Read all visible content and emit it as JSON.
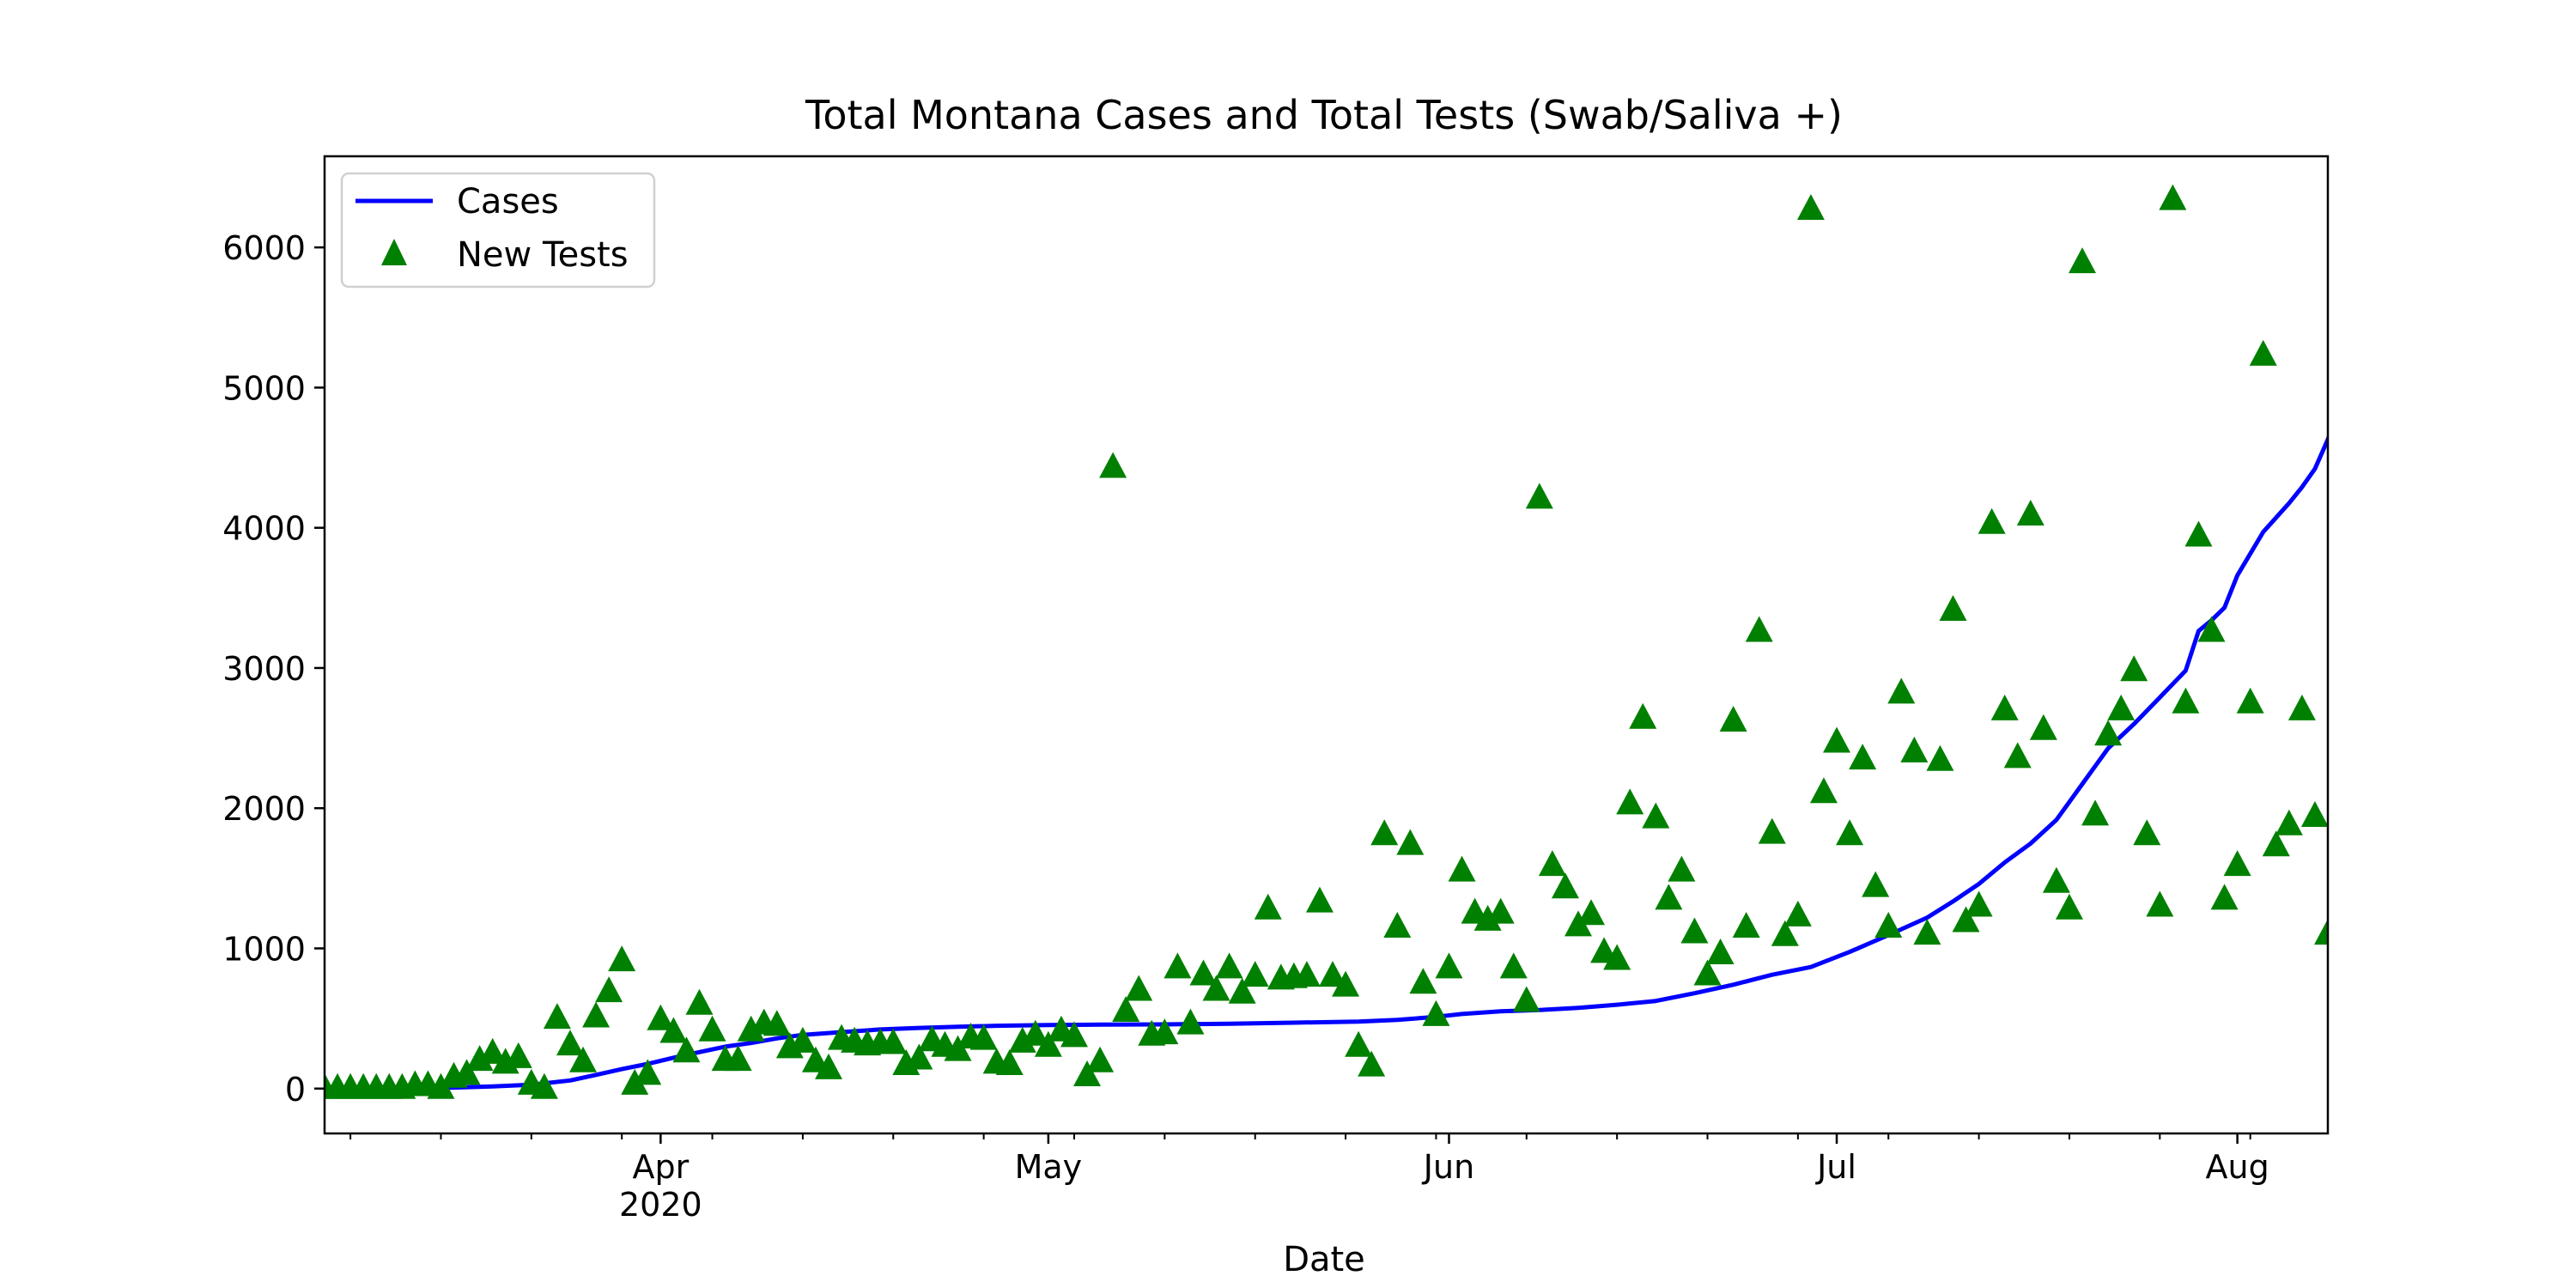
{
  "chart_data": {
    "type": "line",
    "title": "Total Montana Cases and Total Tests (Swab/Saliva +)",
    "xlabel": "Date",
    "ylabel": "",
    "x_range": [
      "2020-03-06",
      "2020-08-07"
    ],
    "ylim": [
      -320,
      6650
    ],
    "yticks": [
      0,
      1000,
      2000,
      3000,
      4000,
      5000,
      6000
    ],
    "xticks": [
      {
        "date": "2020-04-01",
        "label": "Apr",
        "sublabel": "2020"
      },
      {
        "date": "2020-05-01",
        "label": "May",
        "sublabel": ""
      },
      {
        "date": "2020-06-01",
        "label": "Jun",
        "sublabel": ""
      },
      {
        "date": "2020-07-01",
        "label": "Jul",
        "sublabel": ""
      },
      {
        "date": "2020-08-01",
        "label": "Aug",
        "sublabel": ""
      }
    ],
    "grid": false,
    "legend_position": "upper-left",
    "series": [
      {
        "name": "Cases",
        "style": "line",
        "color": "#0000ff",
        "points": [
          [
            "2020-03-06",
            0
          ],
          [
            "2020-03-13",
            1
          ],
          [
            "2020-03-16",
            7
          ],
          [
            "2020-03-19",
            15
          ],
          [
            "2020-03-22",
            27
          ],
          [
            "2020-03-25",
            58
          ],
          [
            "2020-03-27",
            98
          ],
          [
            "2020-03-29",
            139
          ],
          [
            "2020-03-31",
            176
          ],
          [
            "2020-04-02",
            220
          ],
          [
            "2020-04-04",
            260
          ],
          [
            "2020-04-06",
            299
          ],
          [
            "2020-04-08",
            325
          ],
          [
            "2020-04-10",
            358
          ],
          [
            "2020-04-12",
            383
          ],
          [
            "2020-04-15",
            403
          ],
          [
            "2020-04-18",
            422
          ],
          [
            "2020-04-21",
            433
          ],
          [
            "2020-04-24",
            441
          ],
          [
            "2020-04-27",
            448
          ],
          [
            "2020-05-01",
            453
          ],
          [
            "2020-05-05",
            456
          ],
          [
            "2020-05-10",
            458
          ],
          [
            "2020-05-15",
            463
          ],
          [
            "2020-05-20",
            470
          ],
          [
            "2020-05-25",
            478
          ],
          [
            "2020-05-28",
            490
          ],
          [
            "2020-05-31",
            512
          ],
          [
            "2020-06-02",
            532
          ],
          [
            "2020-06-05",
            551
          ],
          [
            "2020-06-08",
            560
          ],
          [
            "2020-06-11",
            576
          ],
          [
            "2020-06-14",
            598
          ],
          [
            "2020-06-17",
            625
          ],
          [
            "2020-06-20",
            680
          ],
          [
            "2020-06-23",
            741
          ],
          [
            "2020-06-26",
            812
          ],
          [
            "2020-06-29",
            867
          ],
          [
            "2020-07-02",
            975
          ],
          [
            "2020-07-05",
            1095
          ],
          [
            "2020-07-08",
            1220
          ],
          [
            "2020-07-10",
            1335
          ],
          [
            "2020-07-12",
            1460
          ],
          [
            "2020-07-14",
            1613
          ],
          [
            "2020-07-16",
            1748
          ],
          [
            "2020-07-18",
            1917
          ],
          [
            "2020-07-20",
            2172
          ],
          [
            "2020-07-22",
            2427
          ],
          [
            "2020-07-24",
            2600
          ],
          [
            "2020-07-26",
            2790
          ],
          [
            "2020-07-28",
            2981
          ],
          [
            "2020-07-29",
            3264
          ],
          [
            "2020-07-30",
            3340
          ],
          [
            "2020-07-31",
            3430
          ],
          [
            "2020-08-01",
            3660
          ],
          [
            "2020-08-03",
            3970
          ],
          [
            "2020-08-05",
            4175
          ],
          [
            "2020-08-06",
            4290
          ],
          [
            "2020-08-07",
            4420
          ],
          [
            "2020-08-08",
            4630
          ],
          [
            "2020-08-09",
            4870
          ]
        ]
      },
      {
        "name": "New Tests",
        "style": "marker",
        "marker": "triangle-up",
        "color": "#008000",
        "points": [
          [
            "2020-03-06",
            0
          ],
          [
            "2020-03-07",
            0
          ],
          [
            "2020-03-08",
            0
          ],
          [
            "2020-03-09",
            0
          ],
          [
            "2020-03-10",
            0
          ],
          [
            "2020-03-11",
            0
          ],
          [
            "2020-03-12",
            0
          ],
          [
            "2020-03-13",
            20
          ],
          [
            "2020-03-14",
            20
          ],
          [
            "2020-03-15",
            0
          ],
          [
            "2020-03-16",
            80
          ],
          [
            "2020-03-17",
            100
          ],
          [
            "2020-03-18",
            200
          ],
          [
            "2020-03-19",
            250
          ],
          [
            "2020-03-20",
            180
          ],
          [
            "2020-03-21",
            220
          ],
          [
            "2020-03-22",
            30
          ],
          [
            "2020-03-23",
            0
          ],
          [
            "2020-03-24",
            500
          ],
          [
            "2020-03-25",
            310
          ],
          [
            "2020-03-26",
            190
          ],
          [
            "2020-03-27",
            510
          ],
          [
            "2020-03-28",
            690
          ],
          [
            "2020-03-29",
            910
          ],
          [
            "2020-03-30",
            30
          ],
          [
            "2020-03-31",
            100
          ],
          [
            "2020-04-01",
            490
          ],
          [
            "2020-04-02",
            400
          ],
          [
            "2020-04-03",
            260
          ],
          [
            "2020-04-04",
            600
          ],
          [
            "2020-04-05",
            410
          ],
          [
            "2020-04-06",
            200
          ],
          [
            "2020-04-07",
            200
          ],
          [
            "2020-04-08",
            410
          ],
          [
            "2020-04-09",
            460
          ],
          [
            "2020-04-10",
            450
          ],
          [
            "2020-04-11",
            290
          ],
          [
            "2020-04-12",
            330
          ],
          [
            "2020-04-13",
            190
          ],
          [
            "2020-04-14",
            140
          ],
          [
            "2020-04-15",
            350
          ],
          [
            "2020-04-16",
            330
          ],
          [
            "2020-04-17",
            310
          ],
          [
            "2020-04-18",
            320
          ],
          [
            "2020-04-19",
            320
          ],
          [
            "2020-04-20",
            170
          ],
          [
            "2020-04-21",
            210
          ],
          [
            "2020-04-22",
            340
          ],
          [
            "2020-04-23",
            300
          ],
          [
            "2020-04-24",
            270
          ],
          [
            "2020-04-25",
            360
          ],
          [
            "2020-04-26",
            350
          ],
          [
            "2020-04-27",
            180
          ],
          [
            "2020-04-28",
            170
          ],
          [
            "2020-04-29",
            330
          ],
          [
            "2020-04-30",
            380
          ],
          [
            "2020-05-01",
            300
          ],
          [
            "2020-05-02",
            410
          ],
          [
            "2020-05-03",
            370
          ],
          [
            "2020-05-04",
            90
          ],
          [
            "2020-05-05",
            190
          ],
          [
            "2020-05-06",
            4430
          ],
          [
            "2020-05-07",
            550
          ],
          [
            "2020-05-08",
            700
          ],
          [
            "2020-05-09",
            380
          ],
          [
            "2020-05-10",
            390
          ],
          [
            "2020-05-11",
            860
          ],
          [
            "2020-05-12",
            460
          ],
          [
            "2020-05-13",
            810
          ],
          [
            "2020-05-14",
            700
          ],
          [
            "2020-05-15",
            860
          ],
          [
            "2020-05-16",
            680
          ],
          [
            "2020-05-17",
            800
          ],
          [
            "2020-05-18",
            1280
          ],
          [
            "2020-05-19",
            780
          ],
          [
            "2020-05-20",
            790
          ],
          [
            "2020-05-21",
            800
          ],
          [
            "2020-05-22",
            1330
          ],
          [
            "2020-05-23",
            800
          ],
          [
            "2020-05-24",
            730
          ],
          [
            "2020-05-25",
            300
          ],
          [
            "2020-05-26",
            160
          ],
          [
            "2020-05-27",
            1810
          ],
          [
            "2020-05-28",
            1150
          ],
          [
            "2020-05-29",
            1740
          ],
          [
            "2020-05-30",
            750
          ],
          [
            "2020-05-31",
            520
          ],
          [
            "2020-06-01",
            860
          ],
          [
            "2020-06-02",
            1550
          ],
          [
            "2020-06-03",
            1250
          ],
          [
            "2020-06-04",
            1200
          ],
          [
            "2020-06-05",
            1250
          ],
          [
            "2020-06-06",
            860
          ],
          [
            "2020-06-07",
            620
          ],
          [
            "2020-06-08",
            4210
          ],
          [
            "2020-06-09",
            1590
          ],
          [
            "2020-06-10",
            1430
          ],
          [
            "2020-06-11",
            1160
          ],
          [
            "2020-06-12",
            1240
          ],
          [
            "2020-06-13",
            970
          ],
          [
            "2020-06-14",
            920
          ],
          [
            "2020-06-15",
            2030
          ],
          [
            "2020-06-16",
            2640
          ],
          [
            "2020-06-17",
            1930
          ],
          [
            "2020-06-18",
            1350
          ],
          [
            "2020-06-19",
            1550
          ],
          [
            "2020-06-20",
            1110
          ],
          [
            "2020-06-21",
            810
          ],
          [
            "2020-06-22",
            960
          ],
          [
            "2020-06-23",
            2620
          ],
          [
            "2020-06-24",
            1150
          ],
          [
            "2020-06-25",
            3260
          ],
          [
            "2020-06-26",
            1820
          ],
          [
            "2020-06-27",
            1090
          ],
          [
            "2020-06-28",
            1230
          ],
          [
            "2020-06-29",
            6270
          ],
          [
            "2020-06-30",
            2110
          ],
          [
            "2020-07-01",
            2470
          ],
          [
            "2020-07-02",
            1810
          ],
          [
            "2020-07-03",
            2350
          ],
          [
            "2020-07-04",
            1440
          ],
          [
            "2020-07-05",
            1150
          ],
          [
            "2020-07-06",
            2820
          ],
          [
            "2020-07-07",
            2400
          ],
          [
            "2020-07-08",
            1100
          ],
          [
            "2020-07-09",
            2340
          ],
          [
            "2020-07-10",
            3410
          ],
          [
            "2020-07-11",
            1190
          ],
          [
            "2020-07-12",
            1300
          ],
          [
            "2020-07-13",
            4030
          ],
          [
            "2020-07-14",
            2700
          ],
          [
            "2020-07-15",
            2360
          ],
          [
            "2020-07-16",
            4090
          ],
          [
            "2020-07-17",
            2560
          ],
          [
            "2020-07-18",
            1470
          ],
          [
            "2020-07-19",
            1280
          ],
          [
            "2020-07-20",
            5890
          ],
          [
            "2020-07-21",
            1950
          ],
          [
            "2020-07-22",
            2520
          ],
          [
            "2020-07-23",
            2700
          ],
          [
            "2020-07-24",
            2980
          ],
          [
            "2020-07-25",
            1810
          ],
          [
            "2020-07-26",
            1300
          ],
          [
            "2020-07-27",
            6340
          ],
          [
            "2020-07-28",
            2750
          ],
          [
            "2020-07-29",
            3940
          ],
          [
            "2020-07-30",
            3260
          ],
          [
            "2020-07-31",
            1350
          ],
          [
            "2020-08-01",
            1590
          ],
          [
            "2020-08-02",
            2750
          ],
          [
            "2020-08-03",
            5230
          ],
          [
            "2020-08-04",
            1730
          ],
          [
            "2020-08-05",
            1880
          ],
          [
            "2020-08-06",
            2700
          ],
          [
            "2020-08-07",
            1940
          ],
          [
            "2020-08-08",
            1100
          ]
        ]
      }
    ]
  }
}
